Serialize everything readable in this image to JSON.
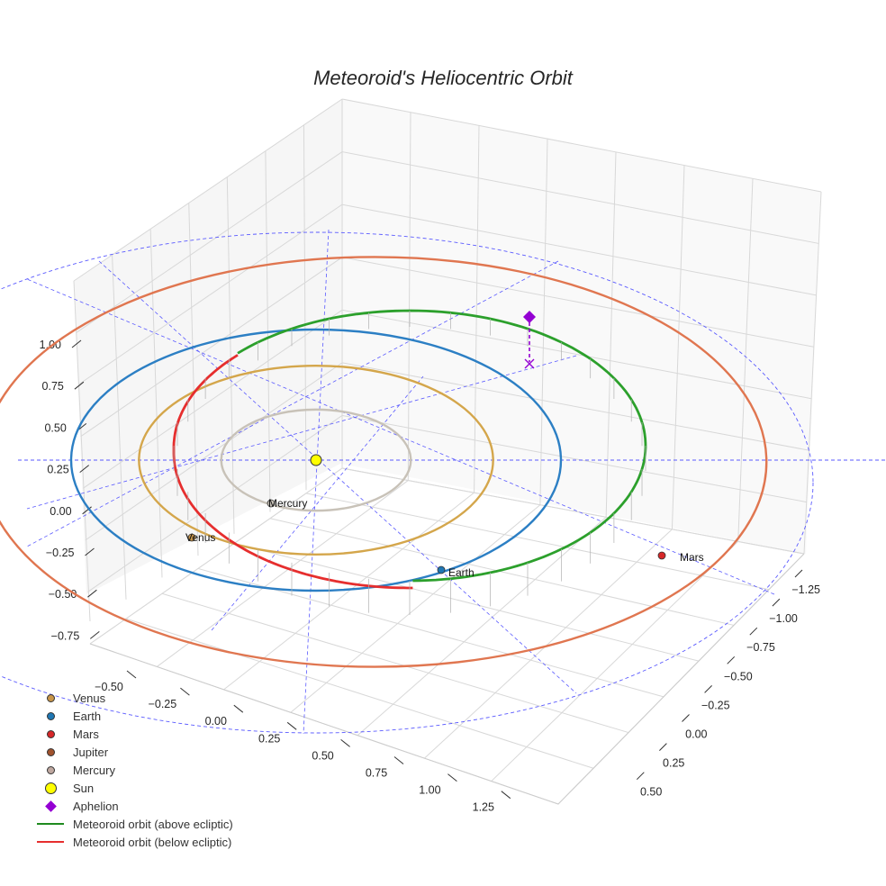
{
  "chart_data": {
    "type": "3d-line",
    "title": "Meteoroid's Heliocentric Orbit",
    "x_ticks": [
      "−0.50",
      "−0.25",
      "0.00",
      "0.25",
      "0.50",
      "0.75",
      "1.00",
      "1.25"
    ],
    "y_ticks": [
      "−1.25",
      "−1.00",
      "−0.75",
      "−0.50",
      "−0.25",
      "0.00",
      "0.25",
      "0.50"
    ],
    "z_ticks": [
      "1.00",
      "0.75",
      "0.50",
      "0.25",
      "0.00",
      "−0.25",
      "−0.50",
      "−0.75"
    ],
    "planet_orbits_au": [
      {
        "name": "Mercury",
        "radius": 0.387,
        "color": "#c8c2b8"
      },
      {
        "name": "Venus",
        "radius": 0.723,
        "color": "#d4a64b"
      },
      {
        "name": "Earth",
        "radius": 1.0,
        "color": "#2c7fc4"
      },
      {
        "name": "Mars",
        "radius": 1.524,
        "color": "#e07650"
      }
    ],
    "planet_labels": [
      {
        "name": "Mercury",
        "color": "#c8c2b8"
      },
      {
        "name": "Venus",
        "color": "#c9964a"
      },
      {
        "name": "Earth",
        "color": "#1f77b4"
      },
      {
        "name": "Mars",
        "color": "#d62728"
      }
    ],
    "meteoroid_orbit": {
      "above_color": "#2ca02c",
      "below_color": "#e62e2e",
      "aphelion_color": "#9400d3"
    },
    "legend": [
      {
        "label": "Venus",
        "marker": "circle",
        "color": "#c9964a"
      },
      {
        "label": "Earth",
        "marker": "circle",
        "color": "#1f77b4"
      },
      {
        "label": "Mars",
        "marker": "circle",
        "color": "#d62728"
      },
      {
        "label": "Jupiter",
        "marker": "circle",
        "color": "#a0522d"
      },
      {
        "label": "Mercury",
        "marker": "circle",
        "color": "#bfa8a0"
      },
      {
        "label": "Sun",
        "marker": "circle-large",
        "color": "#ffff00"
      },
      {
        "label": "Aphelion",
        "marker": "diamond",
        "color": "#9400d3"
      },
      {
        "label": "Meteoroid orbit (above ecliptic)",
        "marker": "line",
        "color": "#1f8a1f"
      },
      {
        "label": "Meteoroid orbit (below ecliptic)",
        "marker": "line",
        "color": "#e62e2e"
      }
    ]
  }
}
